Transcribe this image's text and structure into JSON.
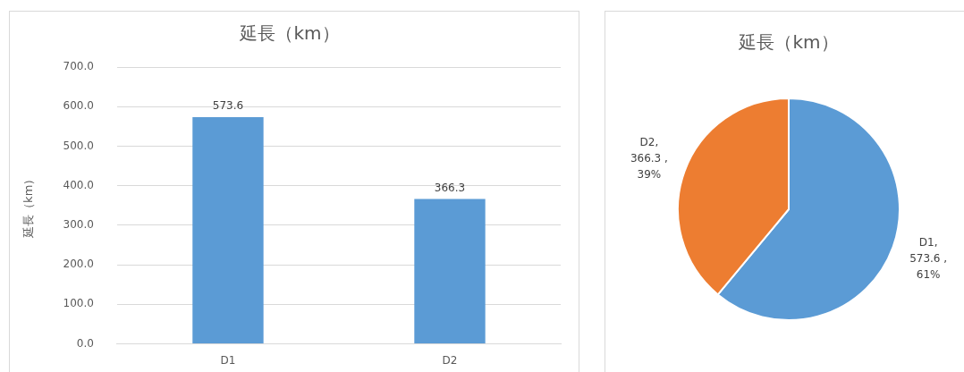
{
  "chart_data": [
    {
      "type": "bar",
      "title": "延長（km）",
      "ylabel": "延長（km）",
      "categories": [
        "D1",
        "D2"
      ],
      "values": [
        573.6,
        366.3
      ],
      "color": "#5b9bd5",
      "ylim": [
        0,
        700
      ],
      "yticks": [
        {
          "value": 0,
          "label": "0.0"
        },
        {
          "value": 100,
          "label": "100.0"
        },
        {
          "value": 200,
          "label": "200.0"
        },
        {
          "value": 300,
          "label": "300.0"
        },
        {
          "value": 400,
          "label": "400.0"
        },
        {
          "value": 500,
          "label": "500.0"
        },
        {
          "value": 600,
          "label": "600.0"
        },
        {
          "value": 700,
          "label": "700.0"
        }
      ],
      "grid": "y",
      "data_labels": true,
      "legend": false
    },
    {
      "type": "pie",
      "title": "延長（km）",
      "categories": [
        "D1",
        "D2"
      ],
      "values": [
        573.6,
        366.3
      ],
      "colors": [
        "#5b9bd5",
        "#ed7d31"
      ],
      "value_labels": [
        ",\n573.6 ,\n61%",
        ",\n366.3 ,\n39%"
      ],
      "legend": false
    }
  ]
}
